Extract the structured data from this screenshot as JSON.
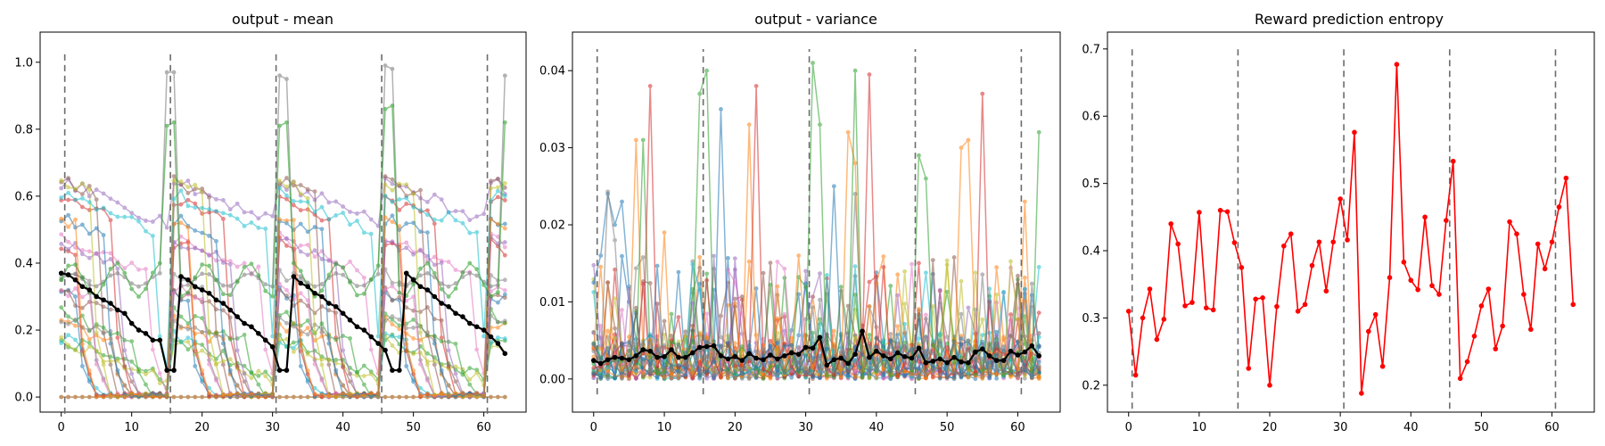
{
  "chart_data": [
    {
      "type": "line",
      "title": "output - mean",
      "xlabel": "",
      "ylabel": "",
      "xlim": [
        -3,
        66
      ],
      "ylim": [
        -0.045,
        1.09
      ],
      "xticks": [
        0,
        10,
        20,
        30,
        40,
        50,
        60
      ],
      "yticks": [
        0.0,
        0.2,
        0.4,
        0.6,
        0.8,
        1.0
      ],
      "ytick_labels": [
        "0.0",
        "0.2",
        "0.4",
        "0.6",
        "0.8",
        "1.0"
      ],
      "vlines": {
        "x": [
          0.5,
          15.5,
          30.5,
          45.5,
          60.5
        ],
        "ymin": -0.05,
        "ymax": 1.03
      },
      "n_points": 64,
      "trial_starts": [
        0,
        16,
        31,
        46,
        61
      ],
      "background_series_count": 22,
      "background_series_colors": [
        "#1f77b4",
        "#ff7f0e",
        "#2ca02c",
        "#d62728",
        "#9467bd",
        "#8c564b",
        "#e377c2",
        "#7f7f7f",
        "#bcbd22",
        "#17becf"
      ],
      "note_background": "many faint colored series, one per output unit; values decay within each trial",
      "mean_series": {
        "color": "#000000",
        "values": [
          0.37,
          0.365,
          0.35,
          0.33,
          0.32,
          0.3,
          0.29,
          0.28,
          0.26,
          0.25,
          0.22,
          0.2,
          0.19,
          0.17,
          0.17,
          0.08,
          0.08,
          0.36,
          0.35,
          0.33,
          0.32,
          0.31,
          0.29,
          0.28,
          0.26,
          0.24,
          0.22,
          0.21,
          0.19,
          0.17,
          0.15,
          0.08,
          0.08,
          0.36,
          0.34,
          0.33,
          0.31,
          0.3,
          0.28,
          0.27,
          0.25,
          0.23,
          0.21,
          0.2,
          0.18,
          0.16,
          0.14,
          0.08,
          0.08,
          0.37,
          0.35,
          0.33,
          0.32,
          0.3,
          0.28,
          0.27,
          0.25,
          0.24,
          0.22,
          0.21,
          0.2,
          0.18,
          0.16,
          0.13
        ]
      },
      "peak_series": {
        "color": "#2ca02c",
        "peaks": [
          [
            15,
            0.81
          ],
          [
            16,
            0.82
          ],
          [
            31,
            0.81
          ],
          [
            32,
            0.82
          ],
          [
            46,
            0.86
          ],
          [
            47,
            0.87
          ],
          [
            63,
            0.82
          ]
        ]
      },
      "peak_series_gray": {
        "color": "#7f7f7f",
        "peaks": [
          [
            15,
            0.97
          ],
          [
            16,
            0.97
          ],
          [
            31,
            0.96
          ],
          [
            32,
            0.95
          ],
          [
            46,
            0.99
          ],
          [
            47,
            0.98
          ],
          [
            63,
            0.96
          ]
        ]
      }
    },
    {
      "type": "line",
      "title": "output - variance",
      "xlabel": "",
      "ylabel": "",
      "xlim": [
        -3,
        66
      ],
      "ylim": [
        -0.0043,
        0.045
      ],
      "xticks": [
        0,
        10,
        20,
        30,
        40,
        50,
        60
      ],
      "yticks": [
        0.0,
        0.01,
        0.02,
        0.03,
        0.04
      ],
      "ytick_labels": [
        "0.00",
        "0.01",
        "0.02",
        "0.03",
        "0.04"
      ],
      "vlines": {
        "x": [
          0.5,
          15.5,
          30.5,
          45.5,
          60.5
        ],
        "ymin": -0.002,
        "ymax": 0.0428
      },
      "n_points": 64,
      "background_series_count": 22,
      "background_series_colors": [
        "#1f77b4",
        "#ff7f0e",
        "#2ca02c",
        "#d62728",
        "#9467bd",
        "#8c564b",
        "#e377c2",
        "#7f7f7f",
        "#bcbd22",
        "#17becf"
      ],
      "mean_series": {
        "color": "#000000",
        "values": [
          0.0024,
          0.002,
          0.0025,
          0.0028,
          0.0027,
          0.0025,
          0.003,
          0.0038,
          0.0036,
          0.0028,
          0.0029,
          0.0038,
          0.0028,
          0.0028,
          0.0034,
          0.0041,
          0.0042,
          0.0043,
          0.003,
          0.0026,
          0.0029,
          0.0024,
          0.0033,
          0.0027,
          0.0025,
          0.0031,
          0.0026,
          0.003,
          0.0034,
          0.0032,
          0.0041,
          0.004,
          0.0054,
          0.0018,
          0.0025,
          0.0027,
          0.002,
          0.0032,
          0.0062,
          0.0028,
          0.0036,
          0.003,
          0.0026,
          0.0034,
          0.0029,
          0.0027,
          0.004,
          0.0021,
          0.0023,
          0.0026,
          0.0021,
          0.0028,
          0.0022,
          0.0021,
          0.0035,
          0.0039,
          0.003,
          0.0024,
          0.0024,
          0.0036,
          0.0031,
          0.0035,
          0.0043,
          0.003
        ]
      },
      "spikes": [
        {
          "color": "#1f77b4",
          "points": [
            [
              0,
              0.0125
            ],
            [
              1,
              0.016
            ],
            [
              2,
              0.024
            ],
            [
              3,
              0.02
            ],
            [
              4,
              0.023
            ],
            [
              5,
              0.012
            ]
          ]
        },
        {
          "color": "#7f7f7f",
          "points": [
            [
              2,
              0.0243
            ],
            [
              3,
              0.018
            ]
          ]
        },
        {
          "color": "#ff7f0e",
          "points": [
            [
              6,
              0.031
            ],
            [
              10,
              0.019
            ],
            [
              22,
              0.033
            ],
            [
              29,
              0.016
            ],
            [
              36,
              0.032
            ],
            [
              37,
              0.028
            ],
            [
              52,
              0.03
            ],
            [
              53,
              0.031
            ],
            [
              61,
              0.023
            ]
          ]
        },
        {
          "color": "#2ca02c",
          "points": [
            [
              7,
              0.031
            ],
            [
              15,
              0.037
            ],
            [
              16,
              0.04
            ],
            [
              31,
              0.041
            ],
            [
              32,
              0.033
            ],
            [
              37,
              0.04
            ],
            [
              46,
              0.029
            ],
            [
              47,
              0.026
            ],
            [
              63,
              0.032
            ]
          ]
        },
        {
          "color": "#d62728",
          "points": [
            [
              8,
              0.038
            ],
            [
              23,
              0.038
            ],
            [
              39,
              0.0395
            ],
            [
              55,
              0.037
            ]
          ]
        },
        {
          "color": "#1f77b4",
          "points": [
            [
              18,
              0.035
            ],
            [
              34,
              0.025
            ]
          ]
        },
        {
          "color": "#7f7f7f",
          "points": [
            [
              37,
              0.024
            ]
          ]
        }
      ]
    },
    {
      "type": "line",
      "title": "Reward prediction entropy",
      "xlabel": "",
      "ylabel": "",
      "xlim": [
        -3,
        66
      ],
      "ylim": [
        0.16,
        0.725
      ],
      "xticks": [
        0,
        10,
        20,
        30,
        40,
        50,
        60
      ],
      "yticks": [
        0.2,
        0.3,
        0.4,
        0.5,
        0.6,
        0.7
      ],
      "ytick_labels": [
        "0.2",
        "0.3",
        "0.4",
        "0.5",
        "0.6",
        "0.7"
      ],
      "vlines": {
        "x": [
          0.5,
          15.5,
          30.5,
          45.5,
          60.5
        ],
        "ymin": 0.165,
        "ymax": 0.7
      },
      "series": [
        {
          "color": "#ff0000",
          "x": [
            0,
            1,
            2,
            3,
            4,
            5,
            6,
            7,
            8,
            9,
            10,
            11,
            12,
            13,
            14,
            15,
            16,
            17,
            18,
            19,
            20,
            21,
            22,
            23,
            24,
            25,
            26,
            27,
            28,
            29,
            30,
            31,
            32,
            33,
            34,
            35,
            36,
            37,
            38,
            39,
            40,
            41,
            42,
            43,
            44,
            45,
            46,
            47,
            48,
            49,
            50,
            51,
            52,
            53,
            54,
            55,
            56,
            57,
            58,
            59,
            60,
            61,
            62,
            63
          ],
          "values": [
            0.31,
            0.215,
            0.3,
            0.343,
            0.268,
            0.298,
            0.44,
            0.41,
            0.318,
            0.323,
            0.457,
            0.315,
            0.312,
            0.46,
            0.458,
            0.412,
            0.375,
            0.225,
            0.328,
            0.33,
            0.2,
            0.317,
            0.407,
            0.425,
            0.31,
            0.32,
            0.378,
            0.413,
            0.34,
            0.413,
            0.477,
            0.416,
            0.576,
            0.188,
            0.28,
            0.305,
            0.228,
            0.36,
            0.677,
            0.383,
            0.356,
            0.342,
            0.45,
            0.348,
            0.335,
            0.445,
            0.533,
            0.21,
            0.235,
            0.273,
            0.318,
            0.343,
            0.254,
            0.288,
            0.443,
            0.425,
            0.335,
            0.283,
            0.41,
            0.373,
            0.413,
            0.465,
            0.508,
            0.32
          ]
        }
      ]
    }
  ],
  "panels": [
    {
      "title": "output - mean"
    },
    {
      "title": "output - variance"
    },
    {
      "title": "Reward prediction entropy"
    }
  ]
}
